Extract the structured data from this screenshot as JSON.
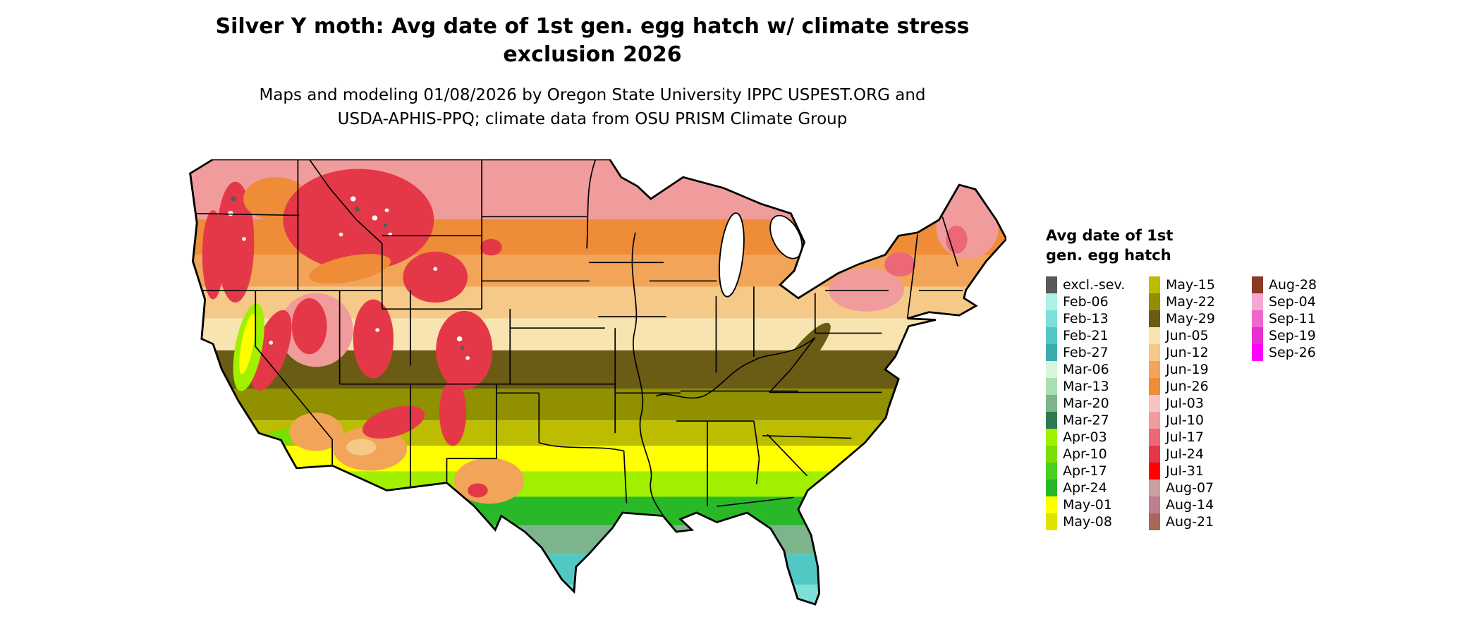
{
  "title": {
    "line1": "Silver Y moth: Avg date of 1st gen. egg hatch w/ climate stress",
    "line2": "exclusion 2026"
  },
  "subtitle": {
    "line1": "Maps and modeling 01/08/2026 by Oregon State University IPPC USPEST.ORG and",
    "line2": "USDA-APHIS-PPQ; climate data from OSU PRISM Climate Group"
  },
  "legend": {
    "title_line1": "Avg date of 1st",
    "title_line2": "gen. egg hatch",
    "columns": [
      {
        "entries": [
          {
            "label": "excl.-sev.",
            "color": "#595959"
          },
          {
            "label": "Feb-06",
            "color": "#aef0e4"
          },
          {
            "label": "Feb-13",
            "color": "#7ce0d8"
          },
          {
            "label": "Feb-21",
            "color": "#52c8c4"
          },
          {
            "label": "Feb-27",
            "color": "#3aacac"
          },
          {
            "label": "Mar-06",
            "color": "#d8f5dc"
          },
          {
            "label": "Mar-13",
            "color": "#a8dfb0"
          },
          {
            "label": "Mar-20",
            "color": "#7cb48c"
          },
          {
            "label": "Mar-27",
            "color": "#2e7a50"
          },
          {
            "label": "Apr-03",
            "color": "#a0f000"
          },
          {
            "label": "Apr-10",
            "color": "#78e000"
          },
          {
            "label": "Apr-17",
            "color": "#46d020"
          },
          {
            "label": "Apr-24",
            "color": "#28b828"
          },
          {
            "label": "May-01",
            "color": "#ffff00"
          },
          {
            "label": "May-08",
            "color": "#e2e200"
          }
        ]
      },
      {
        "entries": [
          {
            "label": "May-15",
            "color": "#bcbc00"
          },
          {
            "label": "May-22",
            "color": "#909000"
          },
          {
            "label": "May-29",
            "color": "#6a5c14"
          },
          {
            "label": "Jun-05",
            "color": "#f8e4b0"
          },
          {
            "label": "Jun-12",
            "color": "#f5c988"
          },
          {
            "label": "Jun-19",
            "color": "#f2a558"
          },
          {
            "label": "Jun-26",
            "color": "#ee8c38"
          },
          {
            "label": "Jul-03",
            "color": "#f6c4c4"
          },
          {
            "label": "Jul-10",
            "color": "#f09c9c"
          },
          {
            "label": "Jul-17",
            "color": "#ec6878"
          },
          {
            "label": "Jul-24",
            "color": "#e43848"
          },
          {
            "label": "Jul-31",
            "color": "#ff0000"
          },
          {
            "label": "Aug-07",
            "color": "#c8a0a0"
          },
          {
            "label": "Aug-14",
            "color": "#ba8090"
          },
          {
            "label": "Aug-21",
            "color": "#a86858"
          }
        ]
      },
      {
        "entries": [
          {
            "label": "Aug-28",
            "color": "#8c3824"
          },
          {
            "label": "Sep-04",
            "color": "#f4a8d4"
          },
          {
            "label": "Sep-11",
            "color": "#ee68cc"
          },
          {
            "label": "Sep-19",
            "color": "#e830d0"
          },
          {
            "label": "Sep-26",
            "color": "#ff00ff"
          }
        ]
      }
    ]
  },
  "map": {
    "description": "Contiguous United States raster map colored by average date of first generation egg hatch; early (teal/green) dates along the Gulf coast and Florida grading to late (orange/pink/red) dates in the north and mountain west, with black state borders.",
    "colors": {
      "mountain_red": "#e43848",
      "mountain_pink": "#f09c9c",
      "northeast_red": "#ec6878",
      "valley_orange": "#ee8c38",
      "desert_orange": "#f2a558",
      "desert_tan": "#f5c988",
      "valley_green": "#a0f000",
      "valley_yellow": "#ffff00",
      "coast_green": "#78e000",
      "appalachian_olive": "#6a5c14",
      "exclusion_gray": "#595959",
      "snow_white": "#ffffff",
      "lake_white": "#ffffff",
      "border_black": "#000000"
    },
    "bands": [
      {
        "from": 0,
        "to": 94,
        "color": "#f09c9c"
      },
      {
        "from": 94,
        "to": 150,
        "color": "#ee8c38"
      },
      {
        "from": 150,
        "to": 200,
        "color": "#f2a558"
      },
      {
        "from": 200,
        "to": 250,
        "color": "#f5c988"
      },
      {
        "from": 250,
        "to": 300,
        "color": "#f8e4b0"
      },
      {
        "from": 300,
        "to": 360,
        "color": "#6a5c14"
      },
      {
        "from": 360,
        "to": 410,
        "color": "#909000"
      },
      {
        "from": 410,
        "to": 450,
        "color": "#bcbc00"
      },
      {
        "from": 450,
        "to": 490,
        "color": "#ffff00"
      },
      {
        "from": 490,
        "to": 530,
        "color": "#a0f000"
      },
      {
        "from": 530,
        "to": 575,
        "color": "#28b828"
      },
      {
        "from": 575,
        "to": 620,
        "color": "#7cb48c"
      },
      {
        "from": 620,
        "to": 668,
        "color": "#52c8c4"
      },
      {
        "from": 668,
        "to": 720,
        "color": "#7ce0d8"
      }
    ]
  }
}
